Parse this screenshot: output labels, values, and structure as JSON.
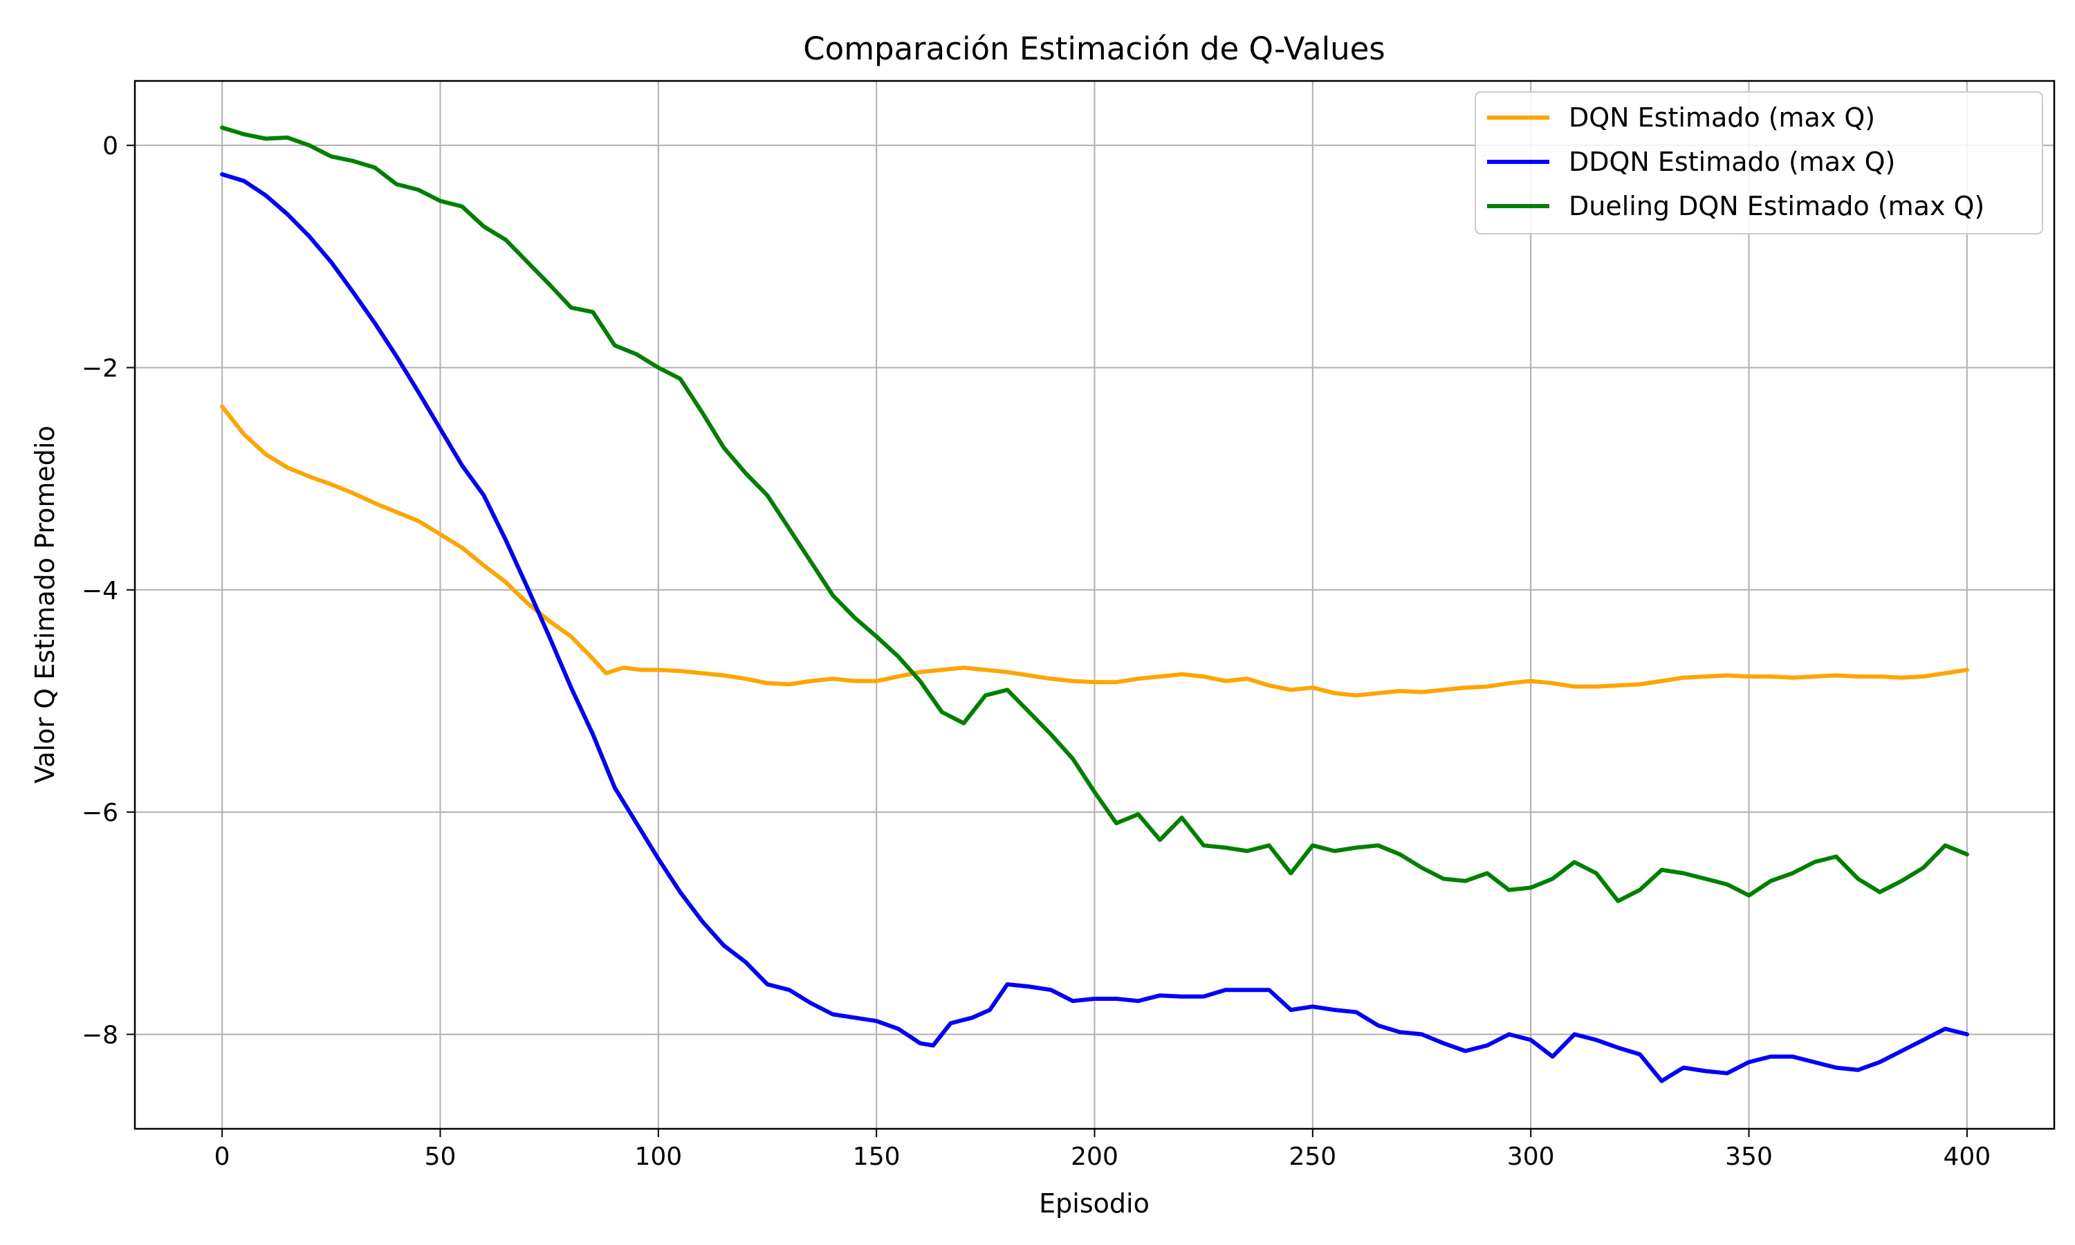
{
  "chart_data": {
    "type": "line",
    "title": "Comparación Estimación de Q-Values",
    "xlabel": "Episodio",
    "ylabel": "Valor Q Estimado Promedio",
    "xlim": [
      -20,
      420
    ],
    "ylim": [
      -8.85,
      0.58
    ],
    "xticks": [
      0,
      50,
      100,
      150,
      200,
      250,
      300,
      350,
      400
    ],
    "yticks": [
      0,
      -2,
      -4,
      -6,
      -8
    ],
    "ytick_labels": [
      "0",
      "−2",
      "−4",
      "−6",
      "−8"
    ],
    "grid": true,
    "legend_position": "top-right",
    "series": [
      {
        "name": "DQN Estimado (max Q)",
        "color": "#ffa500",
        "points": [
          [
            0,
            -2.35
          ],
          [
            5,
            -2.6
          ],
          [
            10,
            -2.78
          ],
          [
            15,
            -2.9
          ],
          [
            20,
            -2.98
          ],
          [
            25,
            -3.05
          ],
          [
            30,
            -3.13
          ],
          [
            35,
            -3.22
          ],
          [
            40,
            -3.3
          ],
          [
            45,
            -3.38
          ],
          [
            50,
            -3.5
          ],
          [
            55,
            -3.62
          ],
          [
            60,
            -3.78
          ],
          [
            65,
            -3.93
          ],
          [
            70,
            -4.12
          ],
          [
            75,
            -4.28
          ],
          [
            80,
            -4.42
          ],
          [
            85,
            -4.62
          ],
          [
            88,
            -4.75
          ],
          [
            92,
            -4.7
          ],
          [
            96,
            -4.72
          ],
          [
            100,
            -4.72
          ],
          [
            105,
            -4.73
          ],
          [
            110,
            -4.75
          ],
          [
            115,
            -4.77
          ],
          [
            120,
            -4.8
          ],
          [
            125,
            -4.84
          ],
          [
            130,
            -4.85
          ],
          [
            135,
            -4.82
          ],
          [
            140,
            -4.8
          ],
          [
            145,
            -4.82
          ],
          [
            150,
            -4.82
          ],
          [
            155,
            -4.78
          ],
          [
            160,
            -4.74
          ],
          [
            165,
            -4.72
          ],
          [
            170,
            -4.7
          ],
          [
            175,
            -4.72
          ],
          [
            180,
            -4.74
          ],
          [
            185,
            -4.77
          ],
          [
            190,
            -4.8
          ],
          [
            195,
            -4.82
          ],
          [
            200,
            -4.83
          ],
          [
            205,
            -4.83
          ],
          [
            210,
            -4.8
          ],
          [
            215,
            -4.78
          ],
          [
            220,
            -4.76
          ],
          [
            225,
            -4.78
          ],
          [
            230,
            -4.82
          ],
          [
            235,
            -4.8
          ],
          [
            240,
            -4.86
          ],
          [
            245,
            -4.9
          ],
          [
            250,
            -4.88
          ],
          [
            255,
            -4.93
          ],
          [
            260,
            -4.95
          ],
          [
            265,
            -4.93
          ],
          [
            270,
            -4.91
          ],
          [
            275,
            -4.92
          ],
          [
            280,
            -4.9
          ],
          [
            285,
            -4.88
          ],
          [
            290,
            -4.87
          ],
          [
            295,
            -4.84
          ],
          [
            300,
            -4.82
          ],
          [
            305,
            -4.84
          ],
          [
            310,
            -4.87
          ],
          [
            315,
            -4.87
          ],
          [
            320,
            -4.86
          ],
          [
            325,
            -4.85
          ],
          [
            330,
            -4.82
          ],
          [
            335,
            -4.79
          ],
          [
            340,
            -4.78
          ],
          [
            345,
            -4.77
          ],
          [
            350,
            -4.78
          ],
          [
            355,
            -4.78
          ],
          [
            360,
            -4.79
          ],
          [
            365,
            -4.78
          ],
          [
            370,
            -4.77
          ],
          [
            375,
            -4.78
          ],
          [
            380,
            -4.78
          ],
          [
            385,
            -4.79
          ],
          [
            390,
            -4.78
          ],
          [
            395,
            -4.75
          ],
          [
            400,
            -4.72
          ]
        ]
      },
      {
        "name": "DDQN Estimado (max Q)",
        "color": "#0000ff",
        "points": [
          [
            0,
            -0.26
          ],
          [
            5,
            -0.32
          ],
          [
            10,
            -0.45
          ],
          [
            15,
            -0.62
          ],
          [
            20,
            -0.82
          ],
          [
            25,
            -1.05
          ],
          [
            30,
            -1.32
          ],
          [
            35,
            -1.6
          ],
          [
            40,
            -1.9
          ],
          [
            45,
            -2.22
          ],
          [
            50,
            -2.55
          ],
          [
            55,
            -2.88
          ],
          [
            60,
            -3.15
          ],
          [
            65,
            -3.55
          ],
          [
            70,
            -3.98
          ],
          [
            75,
            -4.42
          ],
          [
            80,
            -4.88
          ],
          [
            85,
            -5.3
          ],
          [
            90,
            -5.78
          ],
          [
            95,
            -6.1
          ],
          [
            100,
            -6.42
          ],
          [
            105,
            -6.72
          ],
          [
            110,
            -6.98
          ],
          [
            115,
            -7.2
          ],
          [
            120,
            -7.35
          ],
          [
            125,
            -7.55
          ],
          [
            130,
            -7.6
          ],
          [
            135,
            -7.72
          ],
          [
            140,
            -7.82
          ],
          [
            145,
            -7.85
          ],
          [
            150,
            -7.88
          ],
          [
            155,
            -7.95
          ],
          [
            160,
            -8.08
          ],
          [
            163,
            -8.1
          ],
          [
            167,
            -7.9
          ],
          [
            172,
            -7.85
          ],
          [
            176,
            -7.78
          ],
          [
            180,
            -7.55
          ],
          [
            185,
            -7.57
          ],
          [
            190,
            -7.6
          ],
          [
            195,
            -7.7
          ],
          [
            200,
            -7.68
          ],
          [
            205,
            -7.68
          ],
          [
            210,
            -7.7
          ],
          [
            215,
            -7.65
          ],
          [
            220,
            -7.66
          ],
          [
            225,
            -7.66
          ],
          [
            230,
            -7.6
          ],
          [
            235,
            -7.6
          ],
          [
            240,
            -7.6
          ],
          [
            245,
            -7.78
          ],
          [
            250,
            -7.75
          ],
          [
            255,
            -7.78
          ],
          [
            260,
            -7.8
          ],
          [
            265,
            -7.92
          ],
          [
            270,
            -7.98
          ],
          [
            275,
            -8.0
          ],
          [
            280,
            -8.08
          ],
          [
            285,
            -8.15
          ],
          [
            290,
            -8.1
          ],
          [
            295,
            -8.0
          ],
          [
            300,
            -8.05
          ],
          [
            305,
            -8.2
          ],
          [
            310,
            -8.0
          ],
          [
            315,
            -8.05
          ],
          [
            320,
            -8.12
          ],
          [
            325,
            -8.18
          ],
          [
            330,
            -8.42
          ],
          [
            335,
            -8.3
          ],
          [
            340,
            -8.33
          ],
          [
            345,
            -8.35
          ],
          [
            350,
            -8.25
          ],
          [
            355,
            -8.2
          ],
          [
            360,
            -8.2
          ],
          [
            365,
            -8.25
          ],
          [
            370,
            -8.3
          ],
          [
            375,
            -8.32
          ],
          [
            380,
            -8.25
          ],
          [
            385,
            -8.15
          ],
          [
            390,
            -8.05
          ],
          [
            395,
            -7.95
          ],
          [
            400,
            -8.0
          ]
        ]
      },
      {
        "name": "Dueling DQN Estimado (max Q)",
        "color": "#008000",
        "points": [
          [
            0,
            0.16
          ],
          [
            5,
            0.1
          ],
          [
            10,
            0.06
          ],
          [
            15,
            0.07
          ],
          [
            20,
            0.0
          ],
          [
            25,
            -0.1
          ],
          [
            30,
            -0.14
          ],
          [
            35,
            -0.2
          ],
          [
            40,
            -0.35
          ],
          [
            45,
            -0.4
          ],
          [
            50,
            -0.5
          ],
          [
            55,
            -0.55
          ],
          [
            60,
            -0.73
          ],
          [
            65,
            -0.85
          ],
          [
            70,
            -1.05
          ],
          [
            75,
            -1.25
          ],
          [
            80,
            -1.46
          ],
          [
            85,
            -1.5
          ],
          [
            90,
            -1.8
          ],
          [
            95,
            -1.88
          ],
          [
            100,
            -2.0
          ],
          [
            105,
            -2.1
          ],
          [
            110,
            -2.4
          ],
          [
            115,
            -2.72
          ],
          [
            120,
            -2.95
          ],
          [
            125,
            -3.15
          ],
          [
            130,
            -3.45
          ],
          [
            135,
            -3.75
          ],
          [
            140,
            -4.05
          ],
          [
            145,
            -4.25
          ],
          [
            150,
            -4.42
          ],
          [
            155,
            -4.6
          ],
          [
            160,
            -4.82
          ],
          [
            165,
            -5.1
          ],
          [
            170,
            -5.2
          ],
          [
            175,
            -4.95
          ],
          [
            180,
            -4.9
          ],
          [
            185,
            -5.1
          ],
          [
            190,
            -5.3
          ],
          [
            195,
            -5.52
          ],
          [
            200,
            -5.82
          ],
          [
            205,
            -6.1
          ],
          [
            210,
            -6.02
          ],
          [
            215,
            -6.25
          ],
          [
            220,
            -6.05
          ],
          [
            225,
            -6.3
          ],
          [
            230,
            -6.32
          ],
          [
            235,
            -6.35
          ],
          [
            240,
            -6.3
          ],
          [
            245,
            -6.55
          ],
          [
            250,
            -6.3
          ],
          [
            255,
            -6.35
          ],
          [
            260,
            -6.32
          ],
          [
            265,
            -6.3
          ],
          [
            270,
            -6.38
          ],
          [
            275,
            -6.5
          ],
          [
            280,
            -6.6
          ],
          [
            285,
            -6.62
          ],
          [
            290,
            -6.55
          ],
          [
            295,
            -6.7
          ],
          [
            300,
            -6.68
          ],
          [
            305,
            -6.6
          ],
          [
            310,
            -6.45
          ],
          [
            315,
            -6.55
          ],
          [
            320,
            -6.8
          ],
          [
            325,
            -6.7
          ],
          [
            330,
            -6.52
          ],
          [
            335,
            -6.55
          ],
          [
            340,
            -6.6
          ],
          [
            345,
            -6.65
          ],
          [
            350,
            -6.75
          ],
          [
            355,
            -6.62
          ],
          [
            360,
            -6.55
          ],
          [
            365,
            -6.45
          ],
          [
            370,
            -6.4
          ],
          [
            375,
            -6.6
          ],
          [
            380,
            -6.72
          ],
          [
            385,
            -6.62
          ],
          [
            390,
            -6.5
          ],
          [
            395,
            -6.3
          ],
          [
            400,
            -6.38
          ]
        ]
      }
    ]
  }
}
